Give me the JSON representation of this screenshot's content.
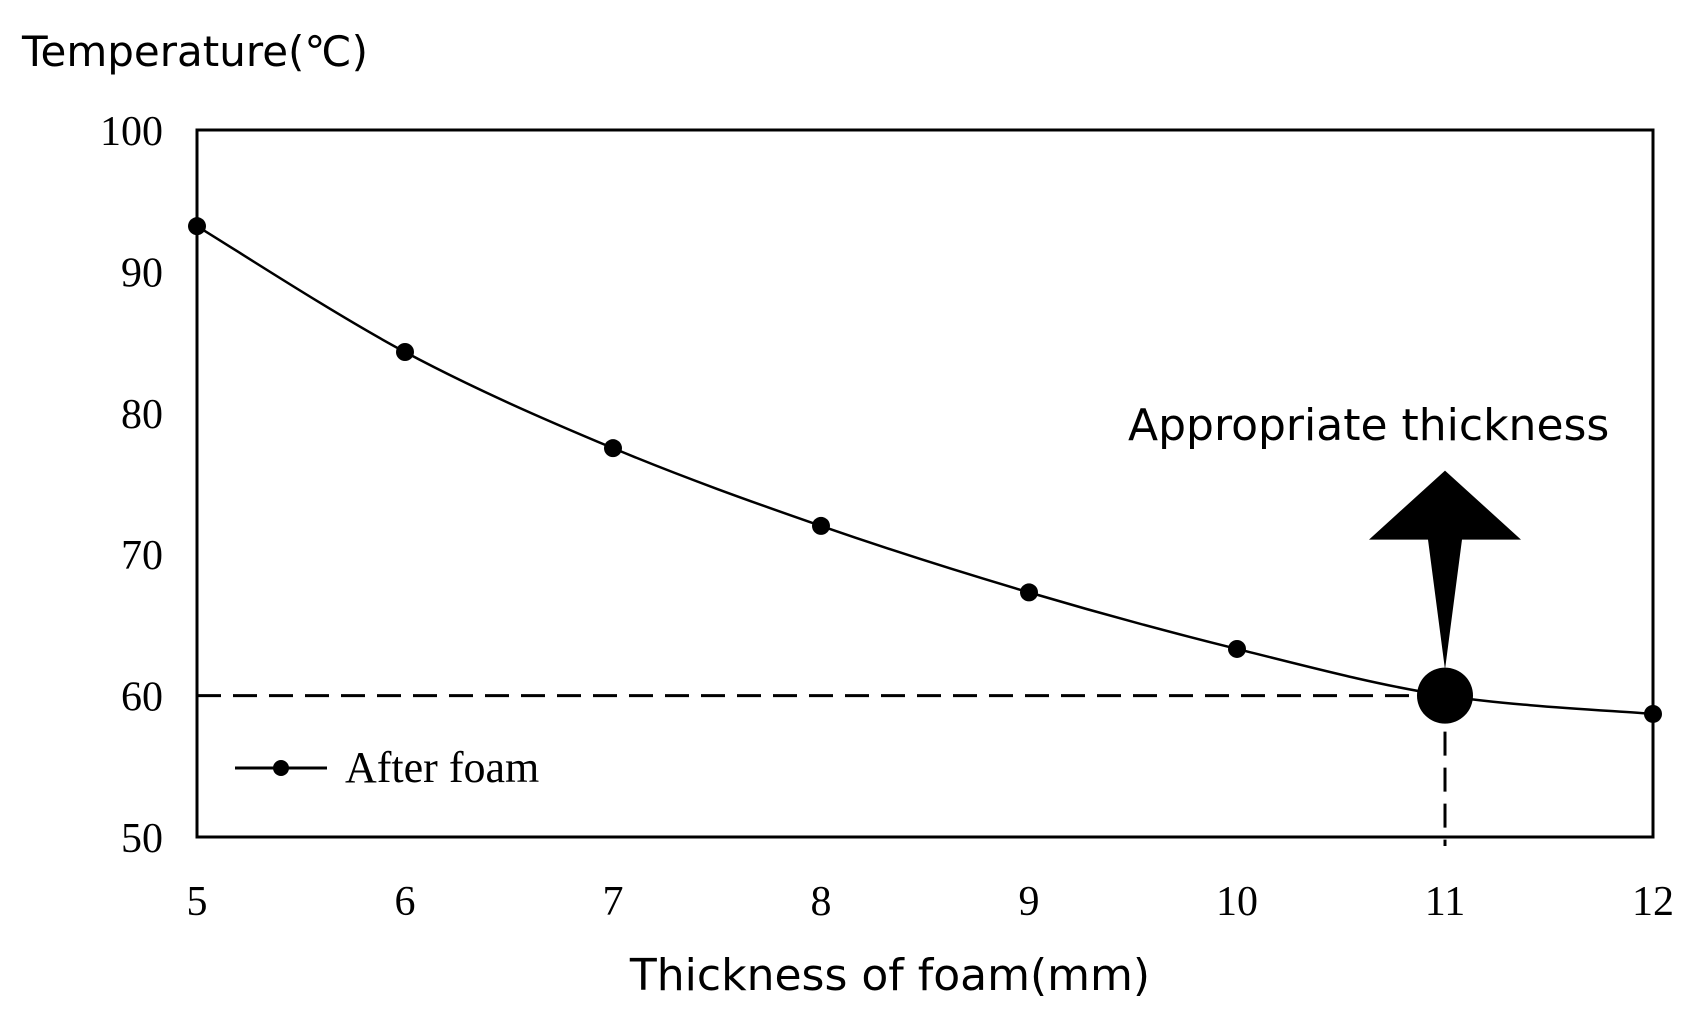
{
  "chart_data": {
    "type": "line",
    "ylabel": "Temperature(℃)",
    "xlabel": "Thickness of foam(mm)",
    "x": [
      5,
      6,
      7,
      8,
      9,
      10,
      11,
      12
    ],
    "xlim": [
      5,
      12
    ],
    "ylim": [
      50,
      100
    ],
    "x_ticks": [
      "5",
      "6",
      "7",
      "8",
      "9",
      "10",
      "11",
      "12"
    ],
    "y_ticks": [
      "50",
      "60",
      "70",
      "80",
      "90",
      "100"
    ],
    "series": [
      {
        "name": "After foam",
        "values": [
          93.2,
          84.3,
          77.5,
          72.0,
          67.3,
          63.3,
          60.0,
          58.7
        ]
      }
    ],
    "legend_position": "bottom-left",
    "annotation": {
      "text": "Appropriate thickness",
      "point": {
        "x": 11,
        "y": 60
      }
    },
    "reference_line_y": 60,
    "reference_line_x": 11
  },
  "colors": {
    "line": "#000000",
    "background": "#ffffff"
  }
}
